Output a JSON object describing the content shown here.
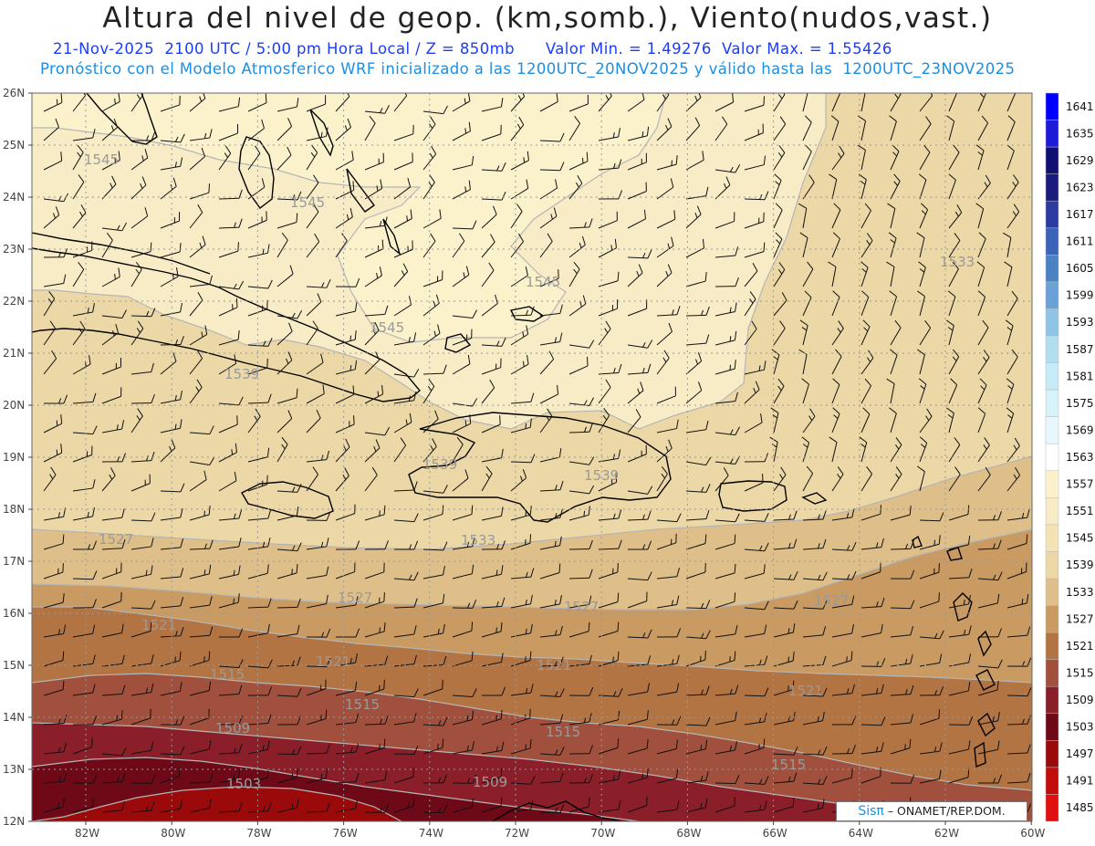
{
  "header": {
    "title": "Altura del nivel de geop. (km,somb.), Viento(nudos,vast.)",
    "subtitle_date": "21-Nov-2025  2100 UTC / 5:00 pm Hora Local / Z = 850mb",
    "subtitle_minmax": "Valor Min. = 1.49276  Valor Max. = 1.55426",
    "subtitle_model": "Pronóstico con el Modelo Atmosferico WRF inicializado a las 1200UTC_20NOV2025 y válido hasta las  1200UTC_23NOV2025"
  },
  "axes": {
    "lat_labels": [
      "26N",
      "25N",
      "24N",
      "23N",
      "22N",
      "21N",
      "20N",
      "19N",
      "18N",
      "17N",
      "16N",
      "15N",
      "14N",
      "13N",
      "12N"
    ],
    "lon_labels": [
      "82W",
      "80W",
      "78W",
      "76W",
      "74W",
      "72W",
      "70W",
      "68W",
      "66W",
      "64W",
      "62W",
      "60W"
    ]
  },
  "colorbar": {
    "levels": [
      "1641",
      "1635",
      "1629",
      "1623",
      "1617",
      "1611",
      "1605",
      "1599",
      "1593",
      "1587",
      "1581",
      "1575",
      "1569",
      "1563",
      "1557",
      "1551",
      "1545",
      "1539",
      "1533",
      "1527",
      "1521",
      "1515",
      "1509",
      "1503",
      "1497",
      "1491",
      "1485"
    ],
    "colors": [
      "#0000ff",
      "#1d1ad9",
      "#101070",
      "#1b1b7e",
      "#2a3a9e",
      "#3b64b8",
      "#4a82c4",
      "#6aa2d8",
      "#8ec4e6",
      "#b2def0",
      "#c6eaf6",
      "#d8f2fa",
      "#e6f8fc",
      "#ffffff",
      "#fbf2cc",
      "#f8ecc6",
      "#f2e2b4",
      "#ecd7a6",
      "#dfbf89",
      "#c99a62",
      "#b37444",
      "#a0503c",
      "#8a1f2a",
      "#6e0a18",
      "#9a0a0a",
      "#c20c0c",
      "#e01010"
    ]
  },
  "contour_labels": [
    "1545",
    "1545",
    "1545",
    "1545",
    "1539",
    "1539",
    "1539",
    "1533",
    "1527",
    "1527",
    "1527",
    "1527",
    "1521",
    "1521",
    "1521",
    "1521",
    "1515",
    "1515",
    "1515",
    "1515",
    "1509",
    "1509",
    "1503",
    "1533"
  ],
  "credit": {
    "sis": "Sis",
    "pi": "π",
    "text": "– ONAMET/REP.DOM."
  }
}
